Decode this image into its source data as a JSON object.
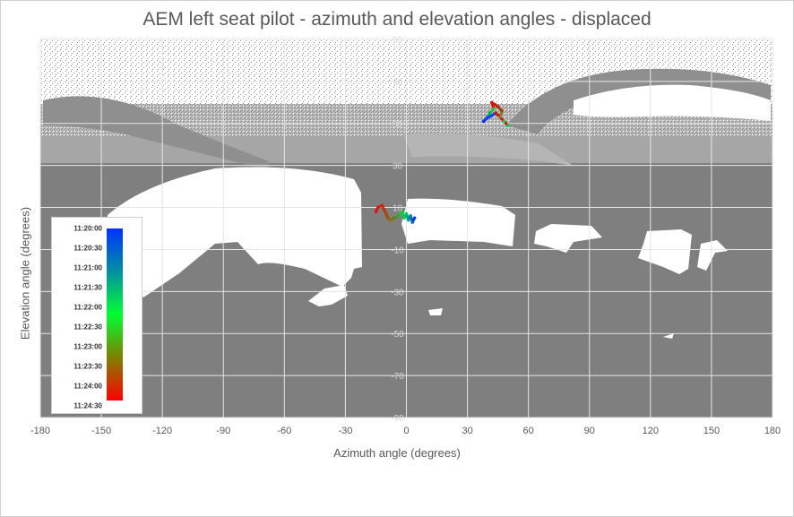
{
  "chart_data": {
    "type": "scatter",
    "title": "AEM left seat pilot - azimuth and elevation angles - displaced",
    "xlabel": "Azimuth angle (degrees)",
    "ylabel": "Elevation angle (degrees)",
    "xlim": [
      -180,
      180
    ],
    "ylim": [
      -90,
      90
    ],
    "x_ticks": [
      "-180",
      "-150",
      "-120",
      "-90",
      "-60",
      "-30",
      "0",
      "30",
      "60",
      "90",
      "120",
      "150",
      "180"
    ],
    "y_ticks": [
      "90",
      "70",
      "50",
      "30",
      "10",
      "-10",
      "-30",
      "-50",
      "-70",
      "-90"
    ],
    "grid": true,
    "colorbar": {
      "labels": [
        "11:20:00",
        "11:20:30",
        "11:21:00",
        "11:21:30",
        "11:22:00",
        "11:22:30",
        "11:23:00",
        "11:23:30",
        "11:24:00",
        "11:24:30"
      ],
      "colors": [
        "#0033ff",
        "#00ff33",
        "#ff0000"
      ],
      "placement": "left"
    },
    "colors": {
      "cockpit_obstruction": "#7f7f7f",
      "visible_area": "#ffffff",
      "gridline": "#e6e6e6",
      "axis_text": "#595959"
    },
    "gaze_traces": [
      {
        "points": [
          [
            -15,
            8,
            "#e01010"
          ],
          [
            -14,
            10,
            "#e01010"
          ],
          [
            -12,
            11,
            "#d02010"
          ],
          [
            -11,
            9,
            "#c03010"
          ],
          [
            -10,
            7,
            "#b04010"
          ],
          [
            -9,
            5,
            "#a05010"
          ],
          [
            -8,
            4,
            "#907010"
          ],
          [
            -6,
            5,
            "#608020"
          ],
          [
            -4,
            6,
            "#40a030"
          ],
          [
            -2,
            8,
            "#20c040"
          ],
          [
            -1,
            5,
            "#00d050"
          ],
          [
            0,
            7,
            "#00c060"
          ],
          [
            1,
            4,
            "#00a080"
          ],
          [
            2,
            6,
            "#0080a0"
          ],
          [
            3,
            3,
            "#0060c0"
          ],
          [
            4,
            5,
            "#0040e0"
          ]
        ]
      },
      {
        "points": [
          [
            38,
            51,
            "#0033ff"
          ],
          [
            40,
            53,
            "#2040f0"
          ],
          [
            41,
            55,
            "#00b050"
          ],
          [
            43,
            57,
            "#30c030"
          ],
          [
            42,
            60,
            "#e01010"
          ],
          [
            45,
            58,
            "#c02010"
          ],
          [
            47,
            56,
            "#a04010"
          ],
          [
            46,
            53,
            "#808020"
          ],
          [
            48,
            51,
            "#40c040"
          ],
          [
            50,
            49,
            "#00d050"
          ],
          [
            44,
            55,
            "#d01010"
          ],
          [
            39,
            52,
            "#1040f0"
          ]
        ]
      }
    ]
  }
}
